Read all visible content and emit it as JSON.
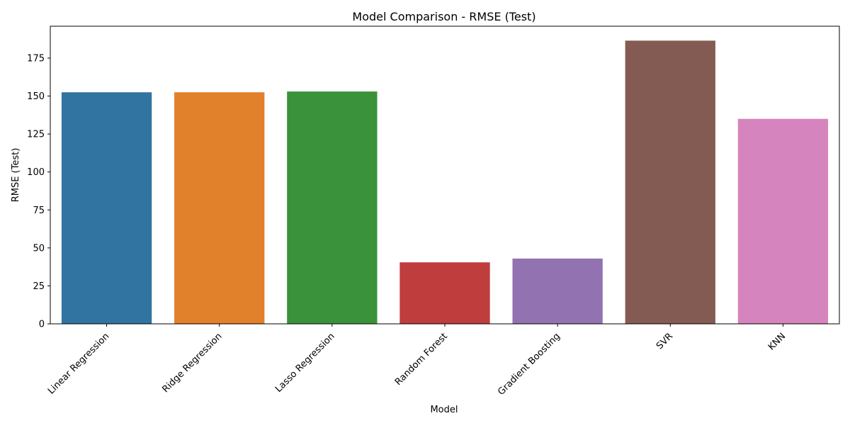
{
  "chart_data": {
    "type": "bar",
    "title": "Model Comparison - RMSE (Test)",
    "xlabel": "Model",
    "ylabel": "RMSE (Test)",
    "categories": [
      "Linear Regression",
      "Ridge Regression",
      "Lasso Regression",
      "Random Forest",
      "Gradient Boosting",
      "SVR",
      "KNN"
    ],
    "values": [
      152.5,
      152.5,
      153.0,
      40.5,
      43.0,
      186.5,
      135.0
    ],
    "colors": [
      "#3274a1",
      "#e1812c",
      "#3a923a",
      "#c03d3e",
      "#9372b2",
      "#845b53",
      "#d684bd"
    ],
    "ylim": [
      0,
      196
    ],
    "yticks": [
      0,
      25,
      50,
      75,
      100,
      125,
      150,
      175
    ],
    "grid": false,
    "legend": "none"
  }
}
